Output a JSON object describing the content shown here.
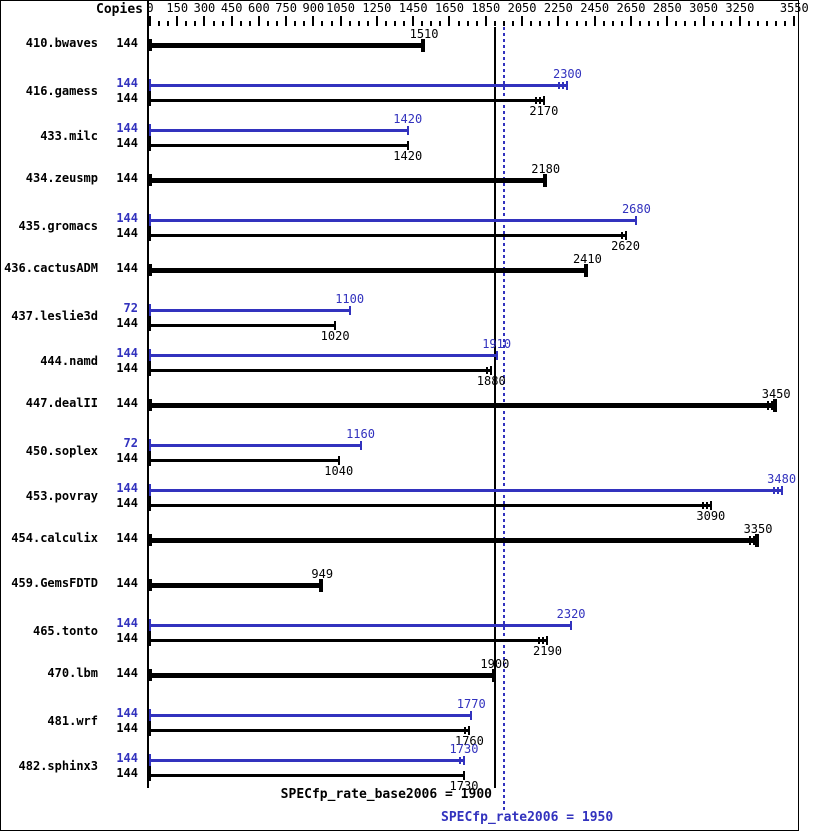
{
  "colors": {
    "peak": "#3232be",
    "base": "#000000",
    "background": "#ffffff"
  },
  "chart_data": {
    "type": "bar",
    "orientation": "horizontal",
    "copies_header": "Copies",
    "axis": {
      "min": 0,
      "max_tick": 3550,
      "minor_step": 50,
      "labels": [
        0,
        150,
        300,
        450,
        600,
        750,
        900,
        1050,
        1250,
        1450,
        1650,
        1850,
        2050,
        2250,
        2450,
        2650,
        2850,
        3050,
        3250,
        3550
      ]
    },
    "series_legend": {
      "peak": "SPECfp_rate2006",
      "base": "SPECfp_rate_base2006"
    },
    "benchmarks": [
      {
        "name": "410.bwaves",
        "bars": [
          {
            "series": "base",
            "copies": 144,
            "value": 1510,
            "bold": true,
            "run_ticks": 0,
            "label_pos": "above"
          }
        ]
      },
      {
        "name": "416.gamess",
        "bars": [
          {
            "series": "peak",
            "copies": 144,
            "value": 2300,
            "bold": false,
            "run_ticks": 2,
            "label_pos": "above"
          },
          {
            "series": "base",
            "copies": 144,
            "value": 2170,
            "bold": false,
            "run_ticks": 2,
            "label_pos": "below"
          }
        ]
      },
      {
        "name": "433.milc",
        "bars": [
          {
            "series": "peak",
            "copies": 144,
            "value": 1420,
            "bold": false,
            "run_ticks": 0,
            "label_pos": "above"
          },
          {
            "series": "base",
            "copies": 144,
            "value": 1420,
            "bold": false,
            "run_ticks": 0,
            "label_pos": "below"
          }
        ]
      },
      {
        "name": "434.zeusmp",
        "bars": [
          {
            "series": "base",
            "copies": 144,
            "value": 2180,
            "bold": true,
            "run_ticks": 0,
            "label_pos": "above"
          }
        ]
      },
      {
        "name": "435.gromacs",
        "bars": [
          {
            "series": "peak",
            "copies": 144,
            "value": 2680,
            "bold": false,
            "run_ticks": 0,
            "label_pos": "above"
          },
          {
            "series": "base",
            "copies": 144,
            "value": 2620,
            "bold": false,
            "run_ticks": 1,
            "label_pos": "below"
          }
        ]
      },
      {
        "name": "436.cactusADM",
        "bars": [
          {
            "series": "base",
            "copies": 144,
            "value": 2410,
            "bold": true,
            "run_ticks": 0,
            "label_pos": "above"
          }
        ]
      },
      {
        "name": "437.leslie3d",
        "bars": [
          {
            "series": "peak",
            "copies": 72,
            "value": 1100,
            "bold": false,
            "run_ticks": 0,
            "label_pos": "above"
          },
          {
            "series": "base",
            "copies": 144,
            "value": 1020,
            "bold": false,
            "run_ticks": 0,
            "label_pos": "below"
          }
        ]
      },
      {
        "name": "444.namd",
        "bars": [
          {
            "series": "peak",
            "copies": 144,
            "value": 1910,
            "bold": false,
            "run_ticks": 0,
            "label_pos": "above"
          },
          {
            "series": "base",
            "copies": 144,
            "value": 1880,
            "bold": false,
            "run_ticks": 1,
            "label_pos": "below"
          }
        ]
      },
      {
        "name": "447.dealII",
        "bars": [
          {
            "series": "base",
            "copies": 144,
            "value": 3450,
            "bold": true,
            "run_ticks": 2,
            "label_pos": "above"
          }
        ]
      },
      {
        "name": "450.soplex",
        "bars": [
          {
            "series": "peak",
            "copies": 72,
            "value": 1160,
            "bold": false,
            "run_ticks": 0,
            "label_pos": "above"
          },
          {
            "series": "base",
            "copies": 144,
            "value": 1040,
            "bold": false,
            "run_ticks": 0,
            "label_pos": "below"
          }
        ]
      },
      {
        "name": "453.povray",
        "bars": [
          {
            "series": "peak",
            "copies": 144,
            "value": 3480,
            "bold": false,
            "run_ticks": 2,
            "label_pos": "above"
          },
          {
            "series": "base",
            "copies": 144,
            "value": 3090,
            "bold": false,
            "run_ticks": 2,
            "label_pos": "below"
          }
        ]
      },
      {
        "name": "454.calculix",
        "bars": [
          {
            "series": "base",
            "copies": 144,
            "value": 3350,
            "bold": true,
            "run_ticks": 2,
            "label_pos": "above"
          }
        ]
      },
      {
        "name": "459.GemsFDTD",
        "bars": [
          {
            "series": "base",
            "copies": 144,
            "value": 949,
            "bold": true,
            "run_ticks": 0,
            "label_pos": "above"
          }
        ]
      },
      {
        "name": "465.tonto",
        "bars": [
          {
            "series": "peak",
            "copies": 144,
            "value": 2320,
            "bold": false,
            "run_ticks": 0,
            "label_pos": "above"
          },
          {
            "series": "base",
            "copies": 144,
            "value": 2190,
            "bold": false,
            "run_ticks": 2,
            "label_pos": "below"
          }
        ]
      },
      {
        "name": "470.lbm",
        "bars": [
          {
            "series": "base",
            "copies": 144,
            "value": 1900,
            "bold": true,
            "run_ticks": 0,
            "label_pos": "above"
          }
        ]
      },
      {
        "name": "481.wrf",
        "bars": [
          {
            "series": "peak",
            "copies": 144,
            "value": 1770,
            "bold": false,
            "run_ticks": 0,
            "label_pos": "above"
          },
          {
            "series": "base",
            "copies": 144,
            "value": 1760,
            "bold": false,
            "run_ticks": 1,
            "label_pos": "below"
          }
        ]
      },
      {
        "name": "482.sphinx3",
        "bars": [
          {
            "series": "peak",
            "copies": 144,
            "value": 1730,
            "bold": false,
            "run_ticks": 1,
            "label_pos": "above"
          },
          {
            "series": "base",
            "copies": 144,
            "value": 1730,
            "bold": false,
            "run_ticks": 0,
            "label_pos": "below"
          }
        ]
      }
    ],
    "reference_lines": [
      {
        "series": "base",
        "value": 1900,
        "label": "SPECfp_rate_base2006 = 1900",
        "style": "solid"
      },
      {
        "series": "peak",
        "value": 1950,
        "label": "SPECfp_rate2006 = 1950",
        "style": "dotted"
      }
    ]
  }
}
